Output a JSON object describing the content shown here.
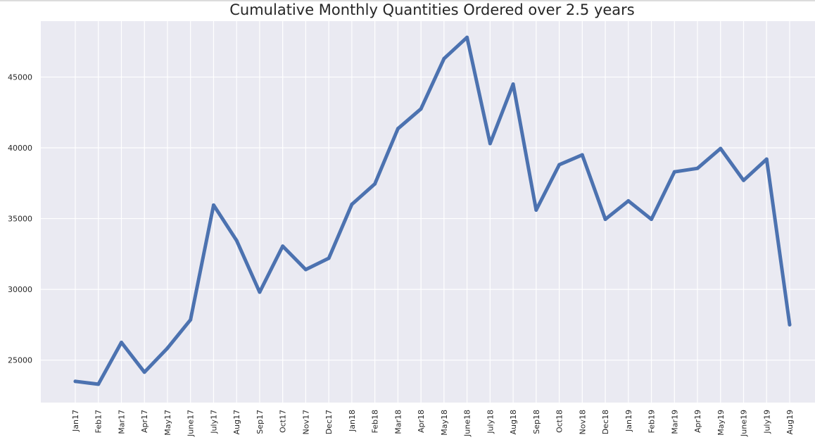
{
  "chart_data": {
    "type": "line",
    "title": "Cumulative Monthly Quantities Ordered over 2.5 years",
    "xlabel": "",
    "ylabel": "",
    "categories": [
      "Jan17",
      "Feb17",
      "Mar17",
      "Apr17",
      "May17",
      "June17",
      "July17",
      "Aug17",
      "Sep17",
      "Oct17",
      "Nov17",
      "Dec17",
      "Jan18",
      "Feb18",
      "Mar18",
      "Apr18",
      "May18",
      "June18",
      "July18",
      "Aug18",
      "Sep18",
      "Oct18",
      "Nov18",
      "Dec18",
      "Jan19",
      "Feb19",
      "Mar19",
      "Apr19",
      "May19",
      "June19",
      "July19",
      "Aug19"
    ],
    "series": [
      {
        "values": [
          23500,
          23300,
          26250,
          24150,
          25850,
          27850,
          35950,
          33450,
          29800,
          33050,
          31400,
          32200,
          36000,
          37450,
          41350,
          42750,
          46300,
          47800,
          40300,
          44500,
          35600,
          38800,
          39500,
          34950,
          36250,
          34950,
          38300,
          38550,
          39950,
          37700,
          39200,
          27500
        ],
        "color": "#4c72b0"
      }
    ],
    "yticks": [
      25000,
      30000,
      35000,
      40000,
      45000
    ],
    "ylim": [
      22000,
      48950
    ],
    "grid": true,
    "legend": "none",
    "colors": {
      "background": "#eaeaf2",
      "grid": "#ffffff",
      "line": "#4c72b0",
      "text": "#262626"
    }
  }
}
